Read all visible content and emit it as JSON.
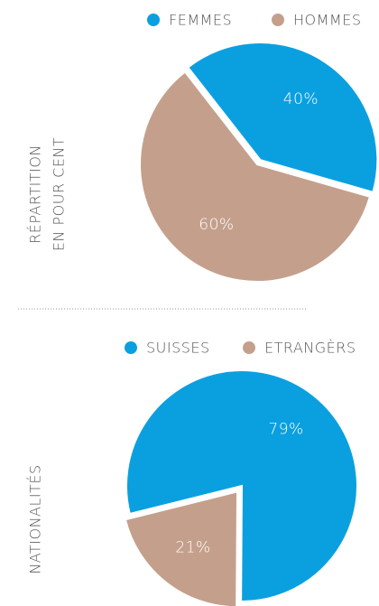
{
  "chart_data": [
    {
      "type": "pie",
      "y_label": [
        "RÉPARTITION",
        "EN POUR CENT"
      ],
      "categories": [
        "FEMMES",
        "HOMMES"
      ],
      "values": [
        40,
        60
      ],
      "value_labels": [
        "40%",
        "60%"
      ],
      "colors": [
        "#0aa0e0",
        "#c4a08c"
      ],
      "legend": "top-right"
    },
    {
      "type": "pie",
      "y_label": [
        "NATIONALITÉS"
      ],
      "categories": [
        "SUISSES",
        "ETRANGÈRS"
      ],
      "values": [
        79,
        21
      ],
      "value_labels": [
        "79%",
        "21%"
      ],
      "colors": [
        "#0aa0e0",
        "#c4a08c"
      ],
      "legend": "top-right"
    }
  ]
}
